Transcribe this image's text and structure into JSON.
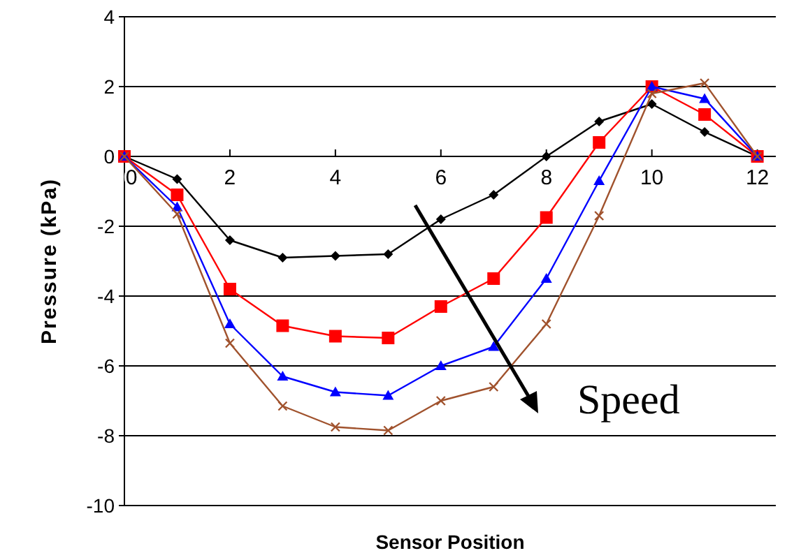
{
  "chart_data": {
    "type": "line",
    "xlabel": "Sensor Position",
    "ylabel": "Pressure (kPa)",
    "x": [
      0,
      1,
      2,
      3,
      4,
      5,
      6,
      7,
      8,
      9,
      10,
      11,
      12
    ],
    "series": [
      {
        "color": "#000000",
        "marker": "diamond",
        "values": [
          0,
          -0.65,
          -2.4,
          -2.9,
          -2.85,
          -2.8,
          -1.8,
          -1.1,
          0,
          1.0,
          1.5,
          0.7,
          0
        ]
      },
      {
        "color": "#ff0000",
        "marker": "square",
        "values": [
          0,
          -1.1,
          -3.8,
          -4.85,
          -5.15,
          -5.2,
          -4.3,
          -3.5,
          -1.75,
          0.4,
          2.0,
          1.2,
          0
        ]
      },
      {
        "color": "#0000ff",
        "marker": "triangle",
        "values": [
          0,
          -1.45,
          -4.8,
          -6.3,
          -6.75,
          -6.85,
          -6.0,
          -5.45,
          -3.5,
          -0.7,
          2.0,
          1.65,
          0
        ]
      },
      {
        "color": "#a0522d",
        "marker": "cross",
        "values": [
          0,
          -1.65,
          -5.35,
          -7.15,
          -7.75,
          -7.85,
          -7.0,
          -6.6,
          -4.8,
          -1.7,
          1.8,
          2.1,
          0
        ]
      }
    ],
    "xlim": [
      0,
      12.35
    ],
    "xticks": [
      0,
      2,
      4,
      6,
      8,
      10,
      12
    ],
    "ylim": [
      -10,
      4
    ],
    "yticks": [
      -10,
      -8,
      -6,
      -4,
      -2,
      0,
      2,
      4
    ],
    "grid": "y",
    "annotations": [
      "Speed"
    ]
  }
}
